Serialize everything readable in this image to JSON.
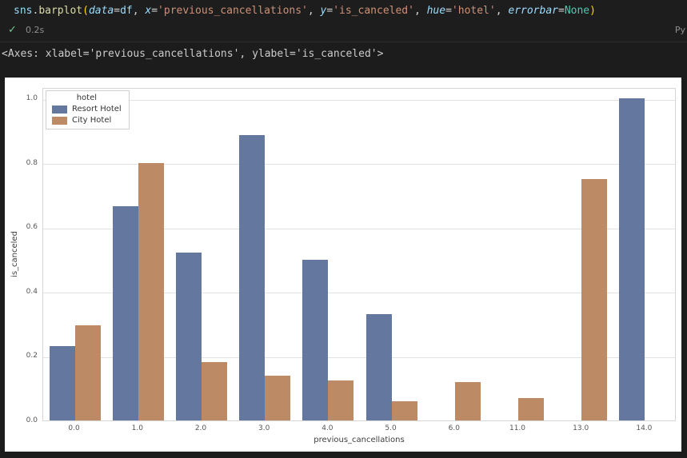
{
  "code_cell": {
    "tokens": [
      {
        "text": "sns",
        "cls": "variable"
      },
      {
        "text": ".",
        "cls": "punct"
      },
      {
        "text": "barplot",
        "cls": "func"
      },
      {
        "text": "(",
        "cls": "bracket"
      },
      {
        "text": "data",
        "cls": "param"
      },
      {
        "text": "=",
        "cls": "punct"
      },
      {
        "text": "df",
        "cls": "variable"
      },
      {
        "text": ", ",
        "cls": "punct"
      },
      {
        "text": "x",
        "cls": "param"
      },
      {
        "text": "=",
        "cls": "punct"
      },
      {
        "text": "'previous_cancellations'",
        "cls": "string"
      },
      {
        "text": ", ",
        "cls": "punct"
      },
      {
        "text": "y",
        "cls": "param"
      },
      {
        "text": "=",
        "cls": "punct"
      },
      {
        "text": "'is_canceled'",
        "cls": "string"
      },
      {
        "text": ", ",
        "cls": "punct"
      },
      {
        "text": "hue",
        "cls": "param"
      },
      {
        "text": "=",
        "cls": "punct"
      },
      {
        "text": "'hotel'",
        "cls": "string"
      },
      {
        "text": ", ",
        "cls": "punct"
      },
      {
        "text": "errorbar",
        "cls": "param"
      },
      {
        "text": "=",
        "cls": "punct"
      },
      {
        "text": "None",
        "cls": "constant"
      },
      {
        "text": ")",
        "cls": "bracket"
      }
    ],
    "status": {
      "check_icon": "✓",
      "exec_time": "0.2s",
      "kernel_label": "Py"
    }
  },
  "output_text": "<Axes: xlabel='previous_cancellations', ylabel='is_canceled'>",
  "chart_data": {
    "type": "bar",
    "title": "",
    "categories": [
      "0.0",
      "1.0",
      "2.0",
      "3.0",
      "4.0",
      "5.0",
      "6.0",
      "11.0",
      "13.0",
      "14.0"
    ],
    "series": [
      {
        "name": "Resort Hotel",
        "color": "#64779f",
        "values": [
          0.23,
          0.665,
          0.52,
          0.885,
          0.5,
          0.33,
          null,
          null,
          null,
          1.0
        ]
      },
      {
        "name": "City Hotel",
        "color": "#bd8a66",
        "values": [
          0.295,
          0.8,
          0.18,
          0.14,
          0.125,
          0.06,
          0.12,
          0.07,
          0.75,
          null
        ]
      }
    ],
    "xlabel": "previous_cancellations",
    "ylabel": "is_canceled",
    "ylim": [
      0,
      1.035
    ],
    "yticks": [
      "0.0",
      "0.2",
      "0.4",
      "0.6",
      "0.8",
      "1.0"
    ],
    "ytick_values": [
      0.0,
      0.2,
      0.4,
      0.6,
      0.8,
      1.0
    ],
    "legend_title": "hotel",
    "legend_position": "upper left",
    "grid": true
  },
  "colors": {
    "editor_bg": "#1d1d1d",
    "figure_bg": "#ffffff",
    "gridline": "#e2e2e2",
    "check_green": "#73C991",
    "resort_blue": "#64779f",
    "city_orange": "#bd8a66"
  }
}
